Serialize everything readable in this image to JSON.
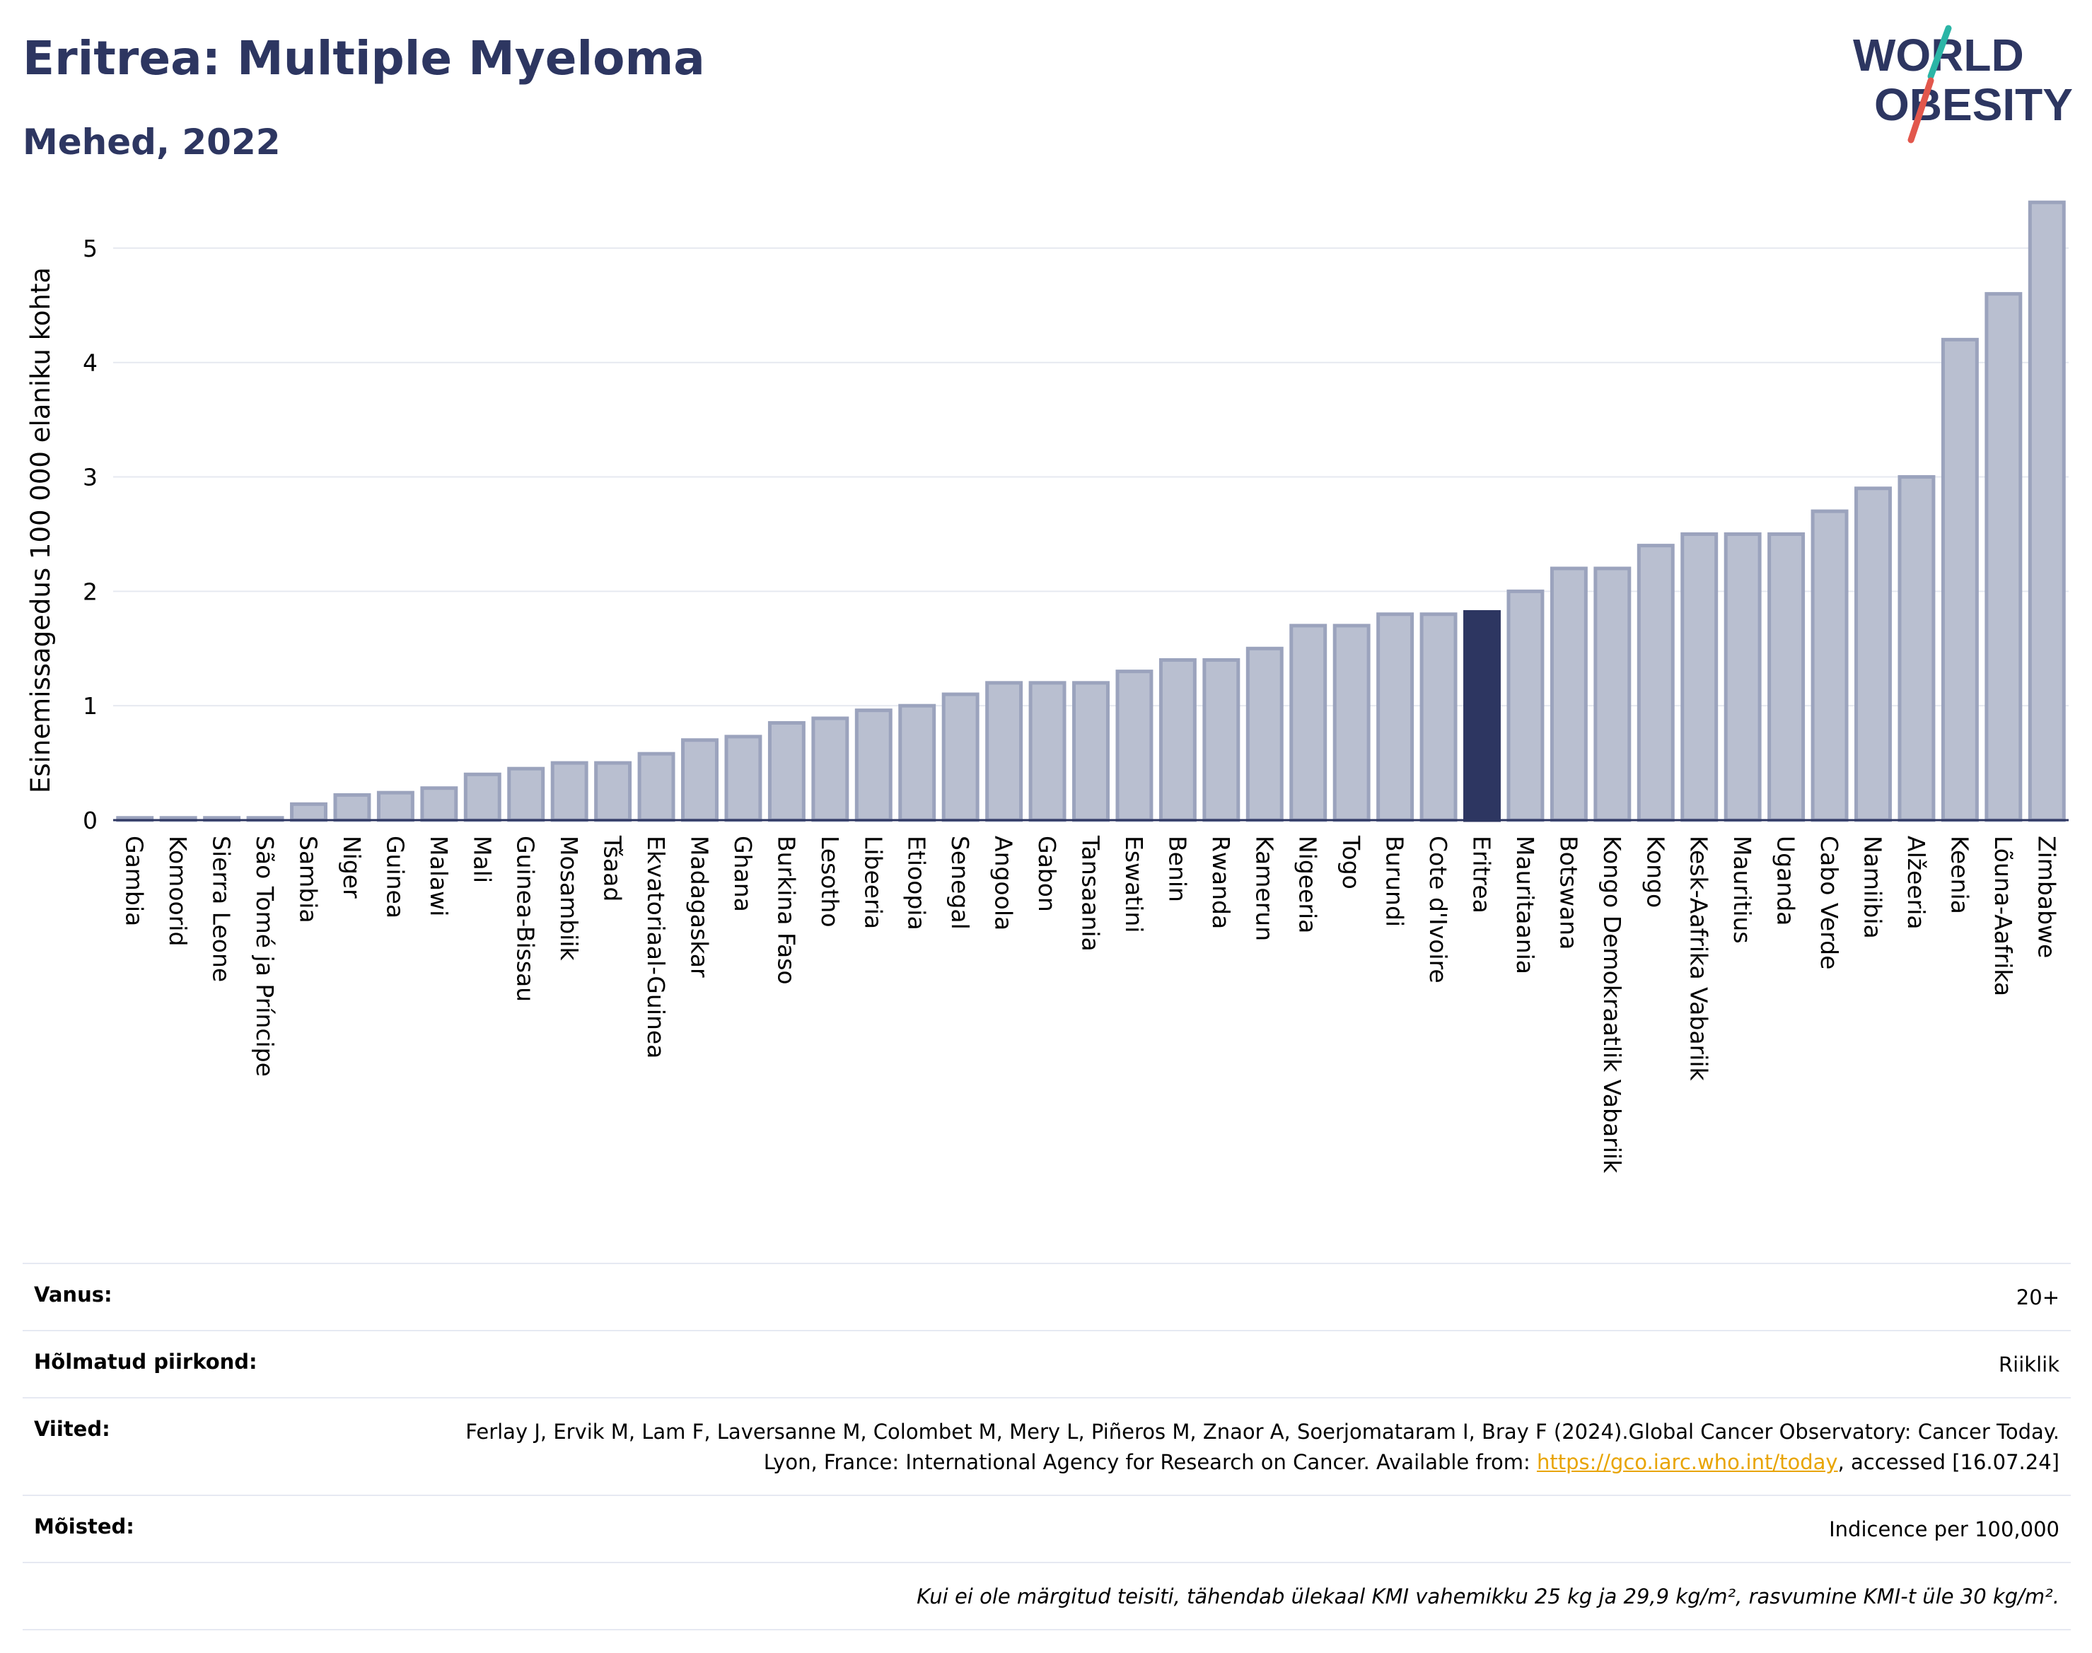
{
  "header": {
    "title": "Eritrea: Multiple Myeloma",
    "subtitle": "Mehed, 2022",
    "logo_text": [
      "WORLD",
      "OBESITY"
    ]
  },
  "colors": {
    "bar": "#b9bfd0",
    "bar_edge": "#9ba3bd",
    "highlight": "#2d3661",
    "title": "#2d3661",
    "logo_slash_teal": "#2bb5a6",
    "logo_slash_red": "#e2574c",
    "link": "#e8a400"
  },
  "chart_data": {
    "type": "bar",
    "title": "",
    "xlabel": "",
    "ylabel": "Esinemissagedus 100 000 elaniku kohta",
    "ylim": [
      0,
      5.5
    ],
    "yticks": [
      0,
      1,
      2,
      3,
      4,
      5
    ],
    "grid": true,
    "highlight": "Eritrea",
    "categories": [
      "Gambia",
      "Komoorid",
      "Sierra Leone",
      "São Tomé ja Príncipe",
      "Sambia",
      "Niger",
      "Guinea",
      "Malawi",
      "Mali",
      "Guinea-Bissau",
      "Mosambiik",
      "Tšaad",
      "Ekvatoriaal-Guinea",
      "Madagaskar",
      "Ghana",
      "Burkina Faso",
      "Lesotho",
      "Libeeria",
      "Etioopia",
      "Senegal",
      "Angoola",
      "Gabon",
      "Tansaania",
      "Eswatini",
      "Benin",
      "Rwanda",
      "Kamerun",
      "Nigeeria",
      "Togo",
      "Burundi",
      "Cote d'Ivoire",
      "Eritrea",
      "Mauritaania",
      "Botswana",
      "Kongo Demokraatlik Vabariik",
      "Kongo",
      "Kesk-Aafrika Vabariik",
      "Mauritius",
      "Uganda",
      "Cabo Verde",
      "Namiibia",
      "Alžeeria",
      "Keenia",
      "Lõuna-Aafrika",
      "Zimbabwe"
    ],
    "values": [
      0.02,
      0.02,
      0.02,
      0.02,
      0.14,
      0.22,
      0.24,
      0.28,
      0.4,
      0.45,
      0.5,
      0.5,
      0.58,
      0.7,
      0.73,
      0.85,
      0.89,
      0.96,
      1.0,
      1.1,
      1.2,
      1.2,
      1.2,
      1.3,
      1.4,
      1.4,
      1.5,
      1.7,
      1.7,
      1.8,
      1.8,
      1.82,
      2.0,
      2.2,
      2.2,
      2.4,
      2.5,
      2.5,
      2.5,
      2.7,
      2.9,
      3.0,
      4.2,
      4.6,
      5.4
    ]
  },
  "info": {
    "age_label": "Vanus:",
    "age_value": "20+",
    "region_label": "Hõlmatud piirkond:",
    "region_value": "Riiklik",
    "refs_label": "Viited:",
    "refs_text": "Ferlay J, Ervik M, Lam F, Laversanne M, Colombet M, Mery L, Piñeros M, Znaor A, Soerjomataram I, Bray F (2024).Global Cancer Observatory: Cancer Today. Lyon, France: International Agency for Research on Cancer. Available from: ",
    "refs_link": "https://gco.iarc.who.int/today",
    "refs_tail": ", accessed [16.07.24]",
    "defs_label": "Mõisted:",
    "defs_value": "Indicence per 100,000",
    "note": "Kui ei ole märgitud teisiti, tähendab ülekaal KMI vahemikku 25 kg ja 29,9 kg/m², rasvumine KMI-t üle 30 kg/m²."
  }
}
